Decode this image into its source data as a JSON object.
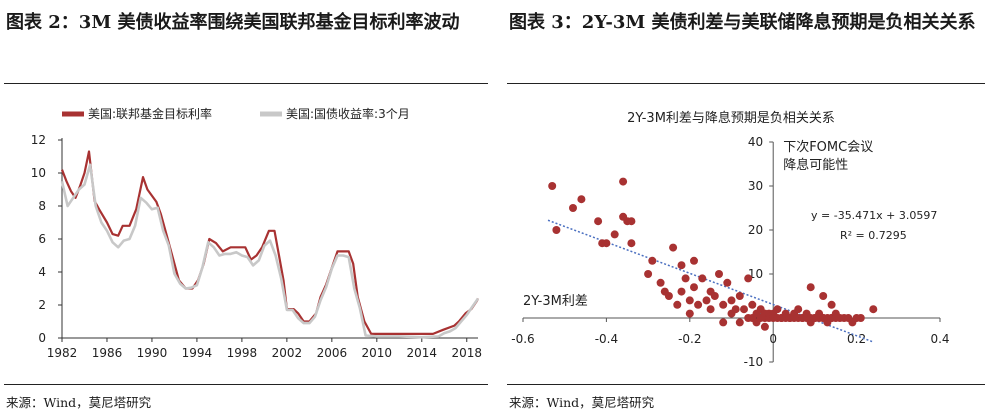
{
  "left": {
    "figure_title": "图表 2：3M 美债收益率围绕美国联邦基金目标利率波动",
    "source": "来源：Wind，莫尼塔研究"
  },
  "right": {
    "figure_title": "图表 3：2Y-3M 美债利差与美联储降息预期是负相关关系",
    "source": "来源：Wind，莫尼塔研究"
  },
  "colors": {
    "fed": "#a83232",
    "tbill": "#c8c8c8",
    "scatter": "#a83232",
    "trend": "#4a6fc0"
  },
  "chart_data": [
    {
      "type": "line",
      "title": "",
      "xlabel": "",
      "ylabel": "",
      "xlim": [
        1982,
        2019
      ],
      "ylim": [
        0,
        12
      ],
      "x_ticks": [
        "1982",
        "1986",
        "1990",
        "1994",
        "1998",
        "2002",
        "2006",
        "2010",
        "2014",
        "2018"
      ],
      "y_ticks": [
        "0",
        "2",
        "4",
        "6",
        "8",
        "10",
        "12"
      ],
      "legend_position": "top-left",
      "series": [
        {
          "name": "美国:联邦基金目标利率",
          "x": [
            1982.0,
            1982.4,
            1982.8,
            1983.2,
            1983.6,
            1984.0,
            1984.4,
            1984.9,
            1985.3,
            1986.0,
            1986.5,
            1987.0,
            1987.4,
            1988.0,
            1988.6,
            1989.2,
            1989.6,
            1990.4,
            1990.8,
            1991.3,
            1991.8,
            1992.4,
            1993.0,
            1993.6,
            1994.1,
            1994.6,
            1995.1,
            1995.7,
            1996.3,
            1997.0,
            1997.6,
            1998.3,
            1998.8,
            1999.3,
            1999.8,
            2000.4,
            2000.9,
            2001.3,
            2001.7,
            2002.0,
            2002.6,
            2003.0,
            2003.5,
            2004.0,
            2004.6,
            2005.0,
            2005.5,
            2006.0,
            2006.5,
            2007.0,
            2007.5,
            2007.9,
            2008.3,
            2008.9,
            2009.5,
            2011.0,
            2013.0,
            2015.0,
            2015.9,
            2016.9,
            2017.3,
            2017.9,
            2018.4,
            2018.9,
            2019.0
          ],
          "y": [
            10.2,
            9.5,
            8.9,
            8.5,
            9.2,
            10.0,
            11.3,
            8.3,
            7.8,
            7.0,
            6.3,
            6.2,
            6.8,
            6.8,
            7.8,
            9.75,
            9.0,
            8.25,
            7.5,
            6.25,
            5.0,
            3.5,
            3.0,
            3.0,
            3.5,
            4.5,
            6.0,
            5.75,
            5.25,
            5.5,
            5.5,
            5.5,
            4.75,
            5.0,
            5.5,
            6.5,
            6.5,
            5.0,
            3.5,
            1.75,
            1.75,
            1.5,
            1.0,
            1.0,
            1.5,
            2.5,
            3.25,
            4.25,
            5.25,
            5.25,
            5.25,
            4.5,
            2.5,
            1.0,
            0.25,
            0.25,
            0.25,
            0.25,
            0.5,
            0.75,
            1.0,
            1.5,
            1.75,
            2.25,
            2.4
          ]
        },
        {
          "name": "美国:国债收益率:3个月",
          "x": [
            1982.0,
            1982.5,
            1983.0,
            1983.5,
            1984.0,
            1984.5,
            1985.0,
            1985.5,
            1986.0,
            1986.5,
            1987.0,
            1987.5,
            1988.0,
            1988.5,
            1989.0,
            1989.5,
            1990.0,
            1990.5,
            1991.0,
            1991.5,
            1992.0,
            1992.5,
            1993.0,
            1993.5,
            1994.0,
            1994.5,
            1995.0,
            1995.5,
            1996.0,
            1996.5,
            1997.0,
            1997.5,
            1998.0,
            1998.5,
            1999.0,
            1999.5,
            2000.0,
            2000.5,
            2001.0,
            2001.5,
            2002.0,
            2002.5,
            2003.0,
            2003.5,
            2004.0,
            2004.5,
            2005.0,
            2005.5,
            2006.0,
            2006.5,
            2007.0,
            2007.5,
            2008.0,
            2008.5,
            2009.0,
            2010.0,
            2012.0,
            2014.0,
            2015.5,
            2016.0,
            2016.5,
            2017.0,
            2017.5,
            2018.0,
            2018.5,
            2018.9,
            2019.0
          ],
          "y": [
            9.5,
            8.0,
            8.5,
            9.0,
            9.3,
            10.5,
            8.0,
            7.0,
            6.5,
            5.8,
            5.5,
            5.9,
            6.0,
            6.8,
            8.5,
            8.2,
            7.8,
            7.9,
            6.5,
            5.6,
            3.9,
            3.3,
            3.0,
            3.05,
            3.2,
            4.3,
            5.8,
            5.5,
            5.0,
            5.1,
            5.1,
            5.2,
            5.0,
            4.9,
            4.4,
            4.7,
            5.6,
            5.9,
            5.0,
            3.6,
            1.7,
            1.7,
            1.2,
            0.9,
            0.9,
            1.3,
            2.3,
            3.1,
            4.2,
            5.0,
            5.0,
            4.9,
            3.0,
            1.8,
            0.15,
            0.1,
            0.1,
            0.05,
            0.1,
            0.3,
            0.4,
            0.6,
            1.0,
            1.4,
            1.9,
            2.3,
            2.4
          ]
        }
      ]
    },
    {
      "type": "scatter",
      "title": "2Y-3M利差与降息预期是负相关关系",
      "xlabel": "2Y-3M利差",
      "ylabel": "下次FOMC会议降息可能性",
      "ylabel_lines": [
        "下次FOMC会议",
        "降息可能性"
      ],
      "xlim": [
        -0.6,
        0.4
      ],
      "ylim": [
        -10,
        40
      ],
      "x_ticks": [
        "-0.6",
        "-0.4",
        "-0.2",
        "0",
        "0.2",
        "0.4"
      ],
      "y_ticks": [
        "-10",
        "0",
        "10",
        "20",
        "30",
        "40"
      ],
      "equation": "y = -35.471x + 3.0597",
      "r_squared": "R² = 0.7295",
      "trendline": {
        "slope": -35.471,
        "intercept": 3.0597,
        "x_range": [
          -0.54,
          0.24
        ]
      },
      "points": [
        [
          -0.53,
          30
        ],
        [
          -0.52,
          20
        ],
        [
          -0.48,
          25
        ],
        [
          -0.46,
          27
        ],
        [
          -0.42,
          22
        ],
        [
          -0.41,
          17
        ],
        [
          -0.4,
          17
        ],
        [
          -0.38,
          19
        ],
        [
          -0.36,
          31
        ],
        [
          -0.36,
          23
        ],
        [
          -0.35,
          22
        ],
        [
          -0.34,
          22
        ],
        [
          -0.34,
          17
        ],
        [
          -0.3,
          10
        ],
        [
          -0.29,
          13
        ],
        [
          -0.27,
          8
        ],
        [
          -0.26,
          6
        ],
        [
          -0.25,
          5
        ],
        [
          -0.24,
          16
        ],
        [
          -0.23,
          3
        ],
        [
          -0.22,
          12
        ],
        [
          -0.22,
          6
        ],
        [
          -0.21,
          9
        ],
        [
          -0.2,
          4
        ],
        [
          -0.2,
          1
        ],
        [
          -0.19,
          13
        ],
        [
          -0.19,
          7
        ],
        [
          -0.18,
          3
        ],
        [
          -0.17,
          9
        ],
        [
          -0.16,
          4
        ],
        [
          -0.15,
          2
        ],
        [
          -0.15,
          6
        ],
        [
          -0.14,
          5
        ],
        [
          -0.13,
          10
        ],
        [
          -0.12,
          3
        ],
        [
          -0.12,
          -1
        ],
        [
          -0.11,
          8
        ],
        [
          -0.1,
          1
        ],
        [
          -0.1,
          4
        ],
        [
          -0.09,
          2
        ],
        [
          -0.08,
          -1
        ],
        [
          -0.08,
          5
        ],
        [
          -0.07,
          2
        ],
        [
          -0.06,
          0
        ],
        [
          -0.06,
          9
        ],
        [
          -0.05,
          3
        ],
        [
          -0.05,
          0
        ],
        [
          -0.04,
          1
        ],
        [
          -0.04,
          -1
        ],
        [
          -0.03,
          2
        ],
        [
          -0.03,
          0
        ],
        [
          -0.02,
          1
        ],
        [
          -0.02,
          0
        ],
        [
          -0.01,
          0
        ],
        [
          -0.01,
          1
        ],
        [
          0.0,
          1
        ],
        [
          0.0,
          0
        ],
        [
          0.01,
          0
        ],
        [
          0.01,
          2
        ],
        [
          0.02,
          0
        ],
        [
          0.02,
          0
        ],
        [
          0.03,
          1
        ],
        [
          0.03,
          0
        ],
        [
          0.04,
          0
        ],
        [
          0.04,
          0
        ],
        [
          0.05,
          0
        ],
        [
          0.05,
          1
        ],
        [
          0.06,
          0
        ],
        [
          0.06,
          2
        ],
        [
          0.07,
          0
        ],
        [
          0.07,
          0
        ],
        [
          0.08,
          0
        ],
        [
          0.08,
          1
        ],
        [
          0.09,
          -1
        ],
        [
          0.09,
          0
        ],
        [
          0.1,
          0
        ],
        [
          0.1,
          0
        ],
        [
          0.11,
          1
        ],
        [
          0.11,
          0
        ],
        [
          0.12,
          0
        ],
        [
          0.12,
          0
        ],
        [
          0.13,
          -1
        ],
        [
          0.13,
          0
        ],
        [
          0.14,
          0
        ],
        [
          0.14,
          0
        ],
        [
          0.15,
          1
        ],
        [
          0.15,
          0
        ],
        [
          0.16,
          0
        ],
        [
          0.17,
          0
        ],
        [
          0.18,
          0
        ],
        [
          0.19,
          -1
        ],
        [
          0.2,
          0
        ],
        [
          0.21,
          0
        ],
        [
          0.24,
          2
        ],
        [
          0.09,
          7
        ],
        [
          0.12,
          5
        ],
        [
          0.14,
          3
        ],
        [
          -0.02,
          -2
        ]
      ]
    }
  ]
}
